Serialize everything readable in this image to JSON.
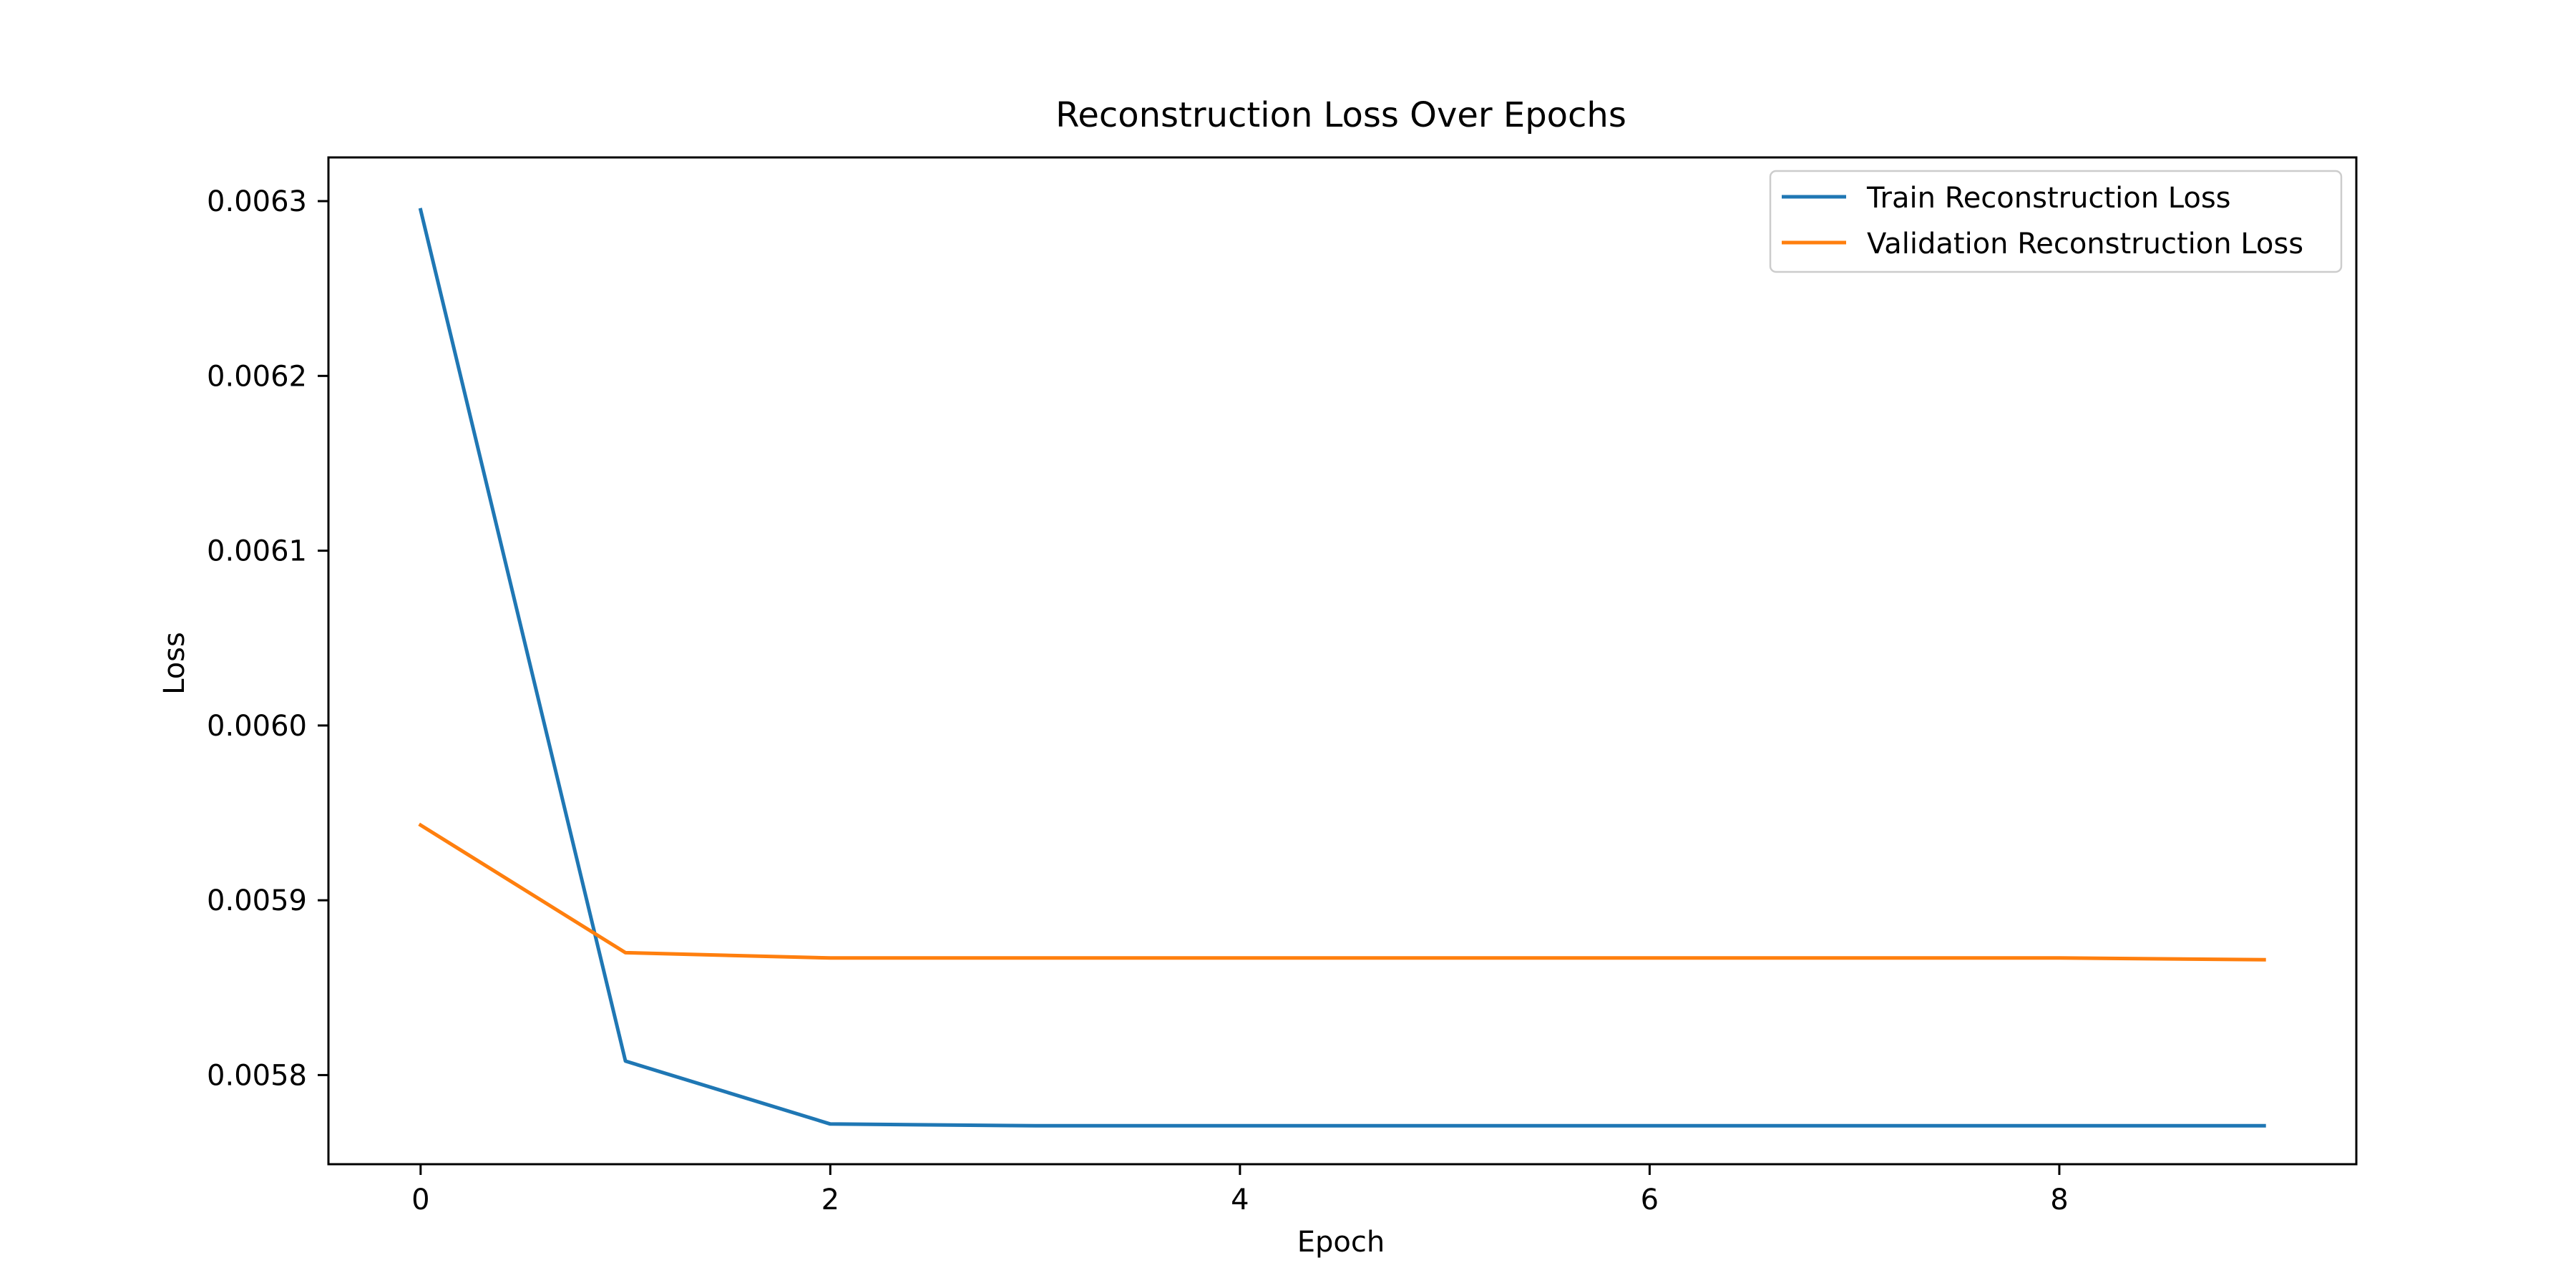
{
  "chart_data": {
    "type": "line",
    "title": "Reconstruction Loss Over Epochs",
    "xlabel": "Epoch",
    "ylabel": "Loss",
    "x": [
      0,
      1,
      2,
      3,
      4,
      5,
      6,
      7,
      8,
      9
    ],
    "xlim": [
      -0.45,
      9.45
    ],
    "ylim": [
      0.005749,
      0.006325
    ],
    "x_ticks": [
      0,
      2,
      4,
      6,
      8
    ],
    "y_ticks": [
      0.0058,
      0.0059,
      0.006,
      0.0061,
      0.0062,
      0.0063
    ],
    "x_tick_labels": [
      "0",
      "2",
      "4",
      "6",
      "8"
    ],
    "y_tick_labels": [
      "0.0058",
      "0.0059",
      "0.0060",
      "0.0061",
      "0.0062",
      "0.0063"
    ],
    "grid": false,
    "legend_position": "top-right",
    "series": [
      {
        "name": "Train Reconstruction Loss",
        "color": "#1f77b4",
        "values": [
          0.006295,
          0.005808,
          0.005772,
          0.005771,
          0.005771,
          0.005771,
          0.005771,
          0.005771,
          0.005771,
          0.005771
        ]
      },
      {
        "name": "Validation Reconstruction Loss",
        "color": "#ff7f0e",
        "values": [
          0.005943,
          0.00587,
          0.005867,
          0.005867,
          0.005867,
          0.005867,
          0.005867,
          0.005867,
          0.005867,
          0.005866
        ]
      }
    ]
  }
}
